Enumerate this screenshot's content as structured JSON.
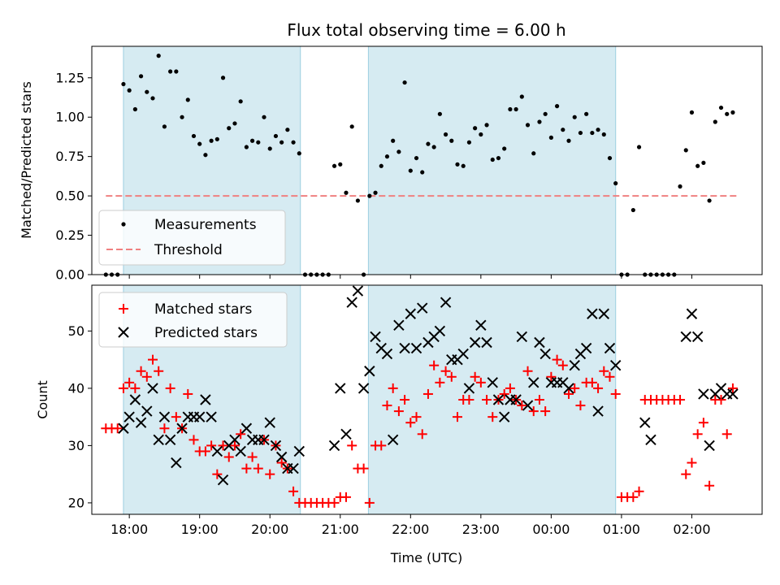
{
  "chart_data": [
    {
      "type": "scatter",
      "title": "Flux total observing time = 6.00 h",
      "xlabel": "",
      "ylabel": "Matched/Predicted stars",
      "ylim": [
        0,
        1.45
      ],
      "yticks": [
        0.0,
        0.25,
        0.5,
        0.75,
        1.0,
        1.25
      ],
      "ytick_labels": [
        "0.00",
        "0.25",
        "0.50",
        "0.75",
        "1.00",
        "1.25"
      ],
      "xlim": [
        "17:28",
        "03:00"
      ],
      "xticks": [
        "18:00",
        "19:00",
        "20:00",
        "21:00",
        "22:00",
        "23:00",
        "00:00",
        "01:00",
        "02:00"
      ],
      "xtick_labels": [
        "",
        "",
        "",
        "",
        "",
        "",
        "",
        "",
        ""
      ],
      "legend_position": "lower-left",
      "shaded_intervals": [
        [
          "17:55",
          "20:26"
        ],
        [
          "21:24",
          "00:55"
        ]
      ],
      "series": [
        {
          "name": "Measurements",
          "marker": "dot",
          "color": "#000000",
          "x": [
            "17:40",
            "17:45",
            "17:50",
            "17:55",
            "18:00",
            "18:05",
            "18:10",
            "18:15",
            "18:20",
            "18:25",
            "18:30",
            "18:35",
            "18:40",
            "18:45",
            "18:50",
            "18:55",
            "19:00",
            "19:05",
            "19:10",
            "19:15",
            "19:20",
            "19:25",
            "19:30",
            "19:35",
            "19:40",
            "19:45",
            "19:50",
            "19:55",
            "20:00",
            "20:05",
            "20:10",
            "20:15",
            "20:20",
            "20:25",
            "20:30",
            "20:35",
            "20:40",
            "20:45",
            "20:50",
            "20:55",
            "21:00",
            "21:05",
            "21:10",
            "21:15",
            "21:20",
            "21:25",
            "21:30",
            "21:35",
            "21:40",
            "21:45",
            "21:50",
            "21:55",
            "22:00",
            "22:05",
            "22:10",
            "22:15",
            "22:20",
            "22:25",
            "22:30",
            "22:35",
            "22:40",
            "22:45",
            "22:50",
            "22:55",
            "23:00",
            "23:05",
            "23:10",
            "23:15",
            "23:20",
            "23:25",
            "23:30",
            "23:35",
            "23:40",
            "23:45",
            "23:50",
            "23:55",
            "00:00",
            "00:05",
            "00:10",
            "00:15",
            "00:20",
            "00:25",
            "00:30",
            "00:35",
            "00:40",
            "00:45",
            "00:50",
            "00:55",
            "01:00",
            "01:05",
            "01:10",
            "01:15",
            "01:20",
            "01:25",
            "01:30",
            "01:35",
            "01:40",
            "01:45",
            "01:50",
            "01:55",
            "02:00",
            "02:05",
            "02:10",
            "02:15",
            "02:20",
            "02:25",
            "02:30",
            "02:35"
          ],
          "y": [
            0.0,
            0.0,
            0.0,
            1.21,
            1.17,
            1.05,
            1.26,
            1.16,
            1.12,
            1.39,
            0.94,
            1.29,
            1.29,
            1.0,
            1.11,
            0.88,
            0.83,
            0.76,
            0.85,
            0.86,
            1.25,
            0.93,
            0.96,
            1.1,
            0.81,
            0.85,
            0.84,
            1.0,
            0.8,
            0.88,
            0.84,
            0.92,
            0.84,
            0.77,
            0.0,
            0.0,
            0.0,
            0.0,
            0.0,
            0.69,
            0.7,
            0.52,
            0.94,
            0.47,
            0.0,
            0.5,
            0.52,
            0.69,
            0.75,
            0.85,
            0.78,
            1.22,
            0.66,
            0.74,
            0.65,
            0.83,
            0.81,
            1.02,
            0.89,
            0.85,
            0.7,
            0.69,
            0.84,
            0.93,
            0.89,
            0.95,
            0.73,
            0.74,
            0.8,
            1.05,
            1.05,
            1.13,
            0.95,
            0.77,
            0.97,
            1.02,
            0.87,
            1.07,
            0.92,
            0.85,
            1.0,
            0.9,
            1.02,
            0.9,
            0.92,
            0.89,
            0.74,
            0.58,
            0.0,
            0.0,
            0.41,
            0.81,
            0.0,
            0.0,
            0.0,
            0.0,
            0.0,
            0.0,
            0.56,
            0.79,
            1.03,
            0.69,
            0.71,
            0.47,
            0.97,
            1.06,
            1.02,
            1.03
          ]
        },
        {
          "name": "Threshold",
          "marker": "dashed-line",
          "color": "#f08080",
          "x": [
            "17:40",
            "02:40"
          ],
          "y": [
            0.5,
            0.5
          ]
        }
      ]
    },
    {
      "type": "scatter",
      "title": "",
      "xlabel": "Time (UTC)",
      "ylabel": "Count",
      "ylim": [
        18,
        58
      ],
      "yticks": [
        20,
        30,
        40,
        50
      ],
      "ytick_labels": [
        "20",
        "30",
        "40",
        "50"
      ],
      "xlim": [
        "17:28",
        "03:00"
      ],
      "xticks": [
        "18:00",
        "19:00",
        "20:00",
        "21:00",
        "22:00",
        "23:00",
        "00:00",
        "01:00",
        "02:00"
      ],
      "xtick_labels": [
        "18:00",
        "19:00",
        "20:00",
        "21:00",
        "22:00",
        "23:00",
        "00:00",
        "01:00",
        "02:00"
      ],
      "legend_position": "upper-left",
      "shaded_intervals": [
        [
          "17:55",
          "20:26"
        ],
        [
          "21:24",
          "00:55"
        ]
      ],
      "series": [
        {
          "name": "Matched stars",
          "marker": "plus",
          "color": "#ff0000",
          "x": [
            "17:40",
            "17:45",
            "17:50",
            "17:55",
            "18:00",
            "18:05",
            "18:10",
            "18:15",
            "18:20",
            "18:25",
            "18:30",
            "18:35",
            "18:40",
            "18:45",
            "18:50",
            "18:55",
            "19:00",
            "19:05",
            "19:10",
            "19:15",
            "19:20",
            "19:25",
            "19:30",
            "19:35",
            "19:40",
            "19:45",
            "19:50",
            "19:55",
            "20:00",
            "20:05",
            "20:10",
            "20:15",
            "20:20",
            "20:25",
            "20:30",
            "20:35",
            "20:40",
            "20:45",
            "20:50",
            "20:55",
            "21:00",
            "21:05",
            "21:10",
            "21:15",
            "21:20",
            "21:25",
            "21:30",
            "21:35",
            "21:40",
            "21:45",
            "21:50",
            "21:55",
            "22:00",
            "22:05",
            "22:10",
            "22:15",
            "22:20",
            "22:25",
            "22:30",
            "22:35",
            "22:40",
            "22:45",
            "22:50",
            "22:55",
            "23:00",
            "23:05",
            "23:10",
            "23:15",
            "23:20",
            "23:25",
            "23:30",
            "23:35",
            "23:40",
            "23:45",
            "23:50",
            "23:55",
            "00:00",
            "00:05",
            "00:10",
            "00:15",
            "00:20",
            "00:25",
            "00:30",
            "00:35",
            "00:40",
            "00:45",
            "00:50",
            "00:55",
            "01:00",
            "01:05",
            "01:10",
            "01:15",
            "01:20",
            "01:25",
            "01:30",
            "01:35",
            "01:40",
            "01:45",
            "01:50",
            "01:55",
            "02:00",
            "02:05",
            "02:10",
            "02:15",
            "02:20",
            "02:25",
            "02:30",
            "02:35"
          ],
          "y": [
            33,
            33,
            33,
            40,
            41,
            40,
            43,
            42,
            45,
            43,
            33,
            40,
            35,
            33,
            39,
            31,
            29,
            29,
            30,
            25,
            30,
            28,
            30,
            32,
            26,
            28,
            26,
            31,
            25,
            30,
            27,
            26,
            22,
            20,
            20,
            20,
            20,
            20,
            20,
            20,
            21,
            21,
            30,
            26,
            26,
            20,
            30,
            30,
            37,
            40,
            36,
            38,
            34,
            35,
            32,
            39,
            44,
            41,
            43,
            42,
            35,
            38,
            38,
            42,
            41,
            38,
            35,
            38,
            39,
            40,
            38,
            37,
            43,
            36,
            38,
            36,
            42,
            45,
            44,
            39,
            40,
            37,
            41,
            41,
            40,
            43,
            42,
            39,
            21,
            21,
            21,
            22,
            38,
            38,
            38,
            38,
            38,
            38,
            38,
            25,
            27,
            32,
            34,
            23,
            38,
            38,
            32,
            40
          ]
        },
        {
          "name": "Predicted stars",
          "marker": "x",
          "color": "#000000",
          "x": [
            "17:55",
            "18:00",
            "18:05",
            "18:10",
            "18:15",
            "18:20",
            "18:25",
            "18:30",
            "18:35",
            "18:40",
            "18:45",
            "18:50",
            "18:55",
            "19:00",
            "19:05",
            "19:10",
            "19:15",
            "19:20",
            "19:25",
            "19:30",
            "19:35",
            "19:40",
            "19:45",
            "19:50",
            "19:55",
            "20:00",
            "20:05",
            "20:10",
            "20:15",
            "20:20",
            "20:25",
            "20:55",
            "21:00",
            "21:05",
            "21:10",
            "21:15",
            "21:20",
            "21:25",
            "21:30",
            "21:35",
            "21:40",
            "21:45",
            "21:50",
            "21:55",
            "22:00",
            "22:05",
            "22:10",
            "22:15",
            "22:20",
            "22:25",
            "22:30",
            "22:35",
            "22:40",
            "22:45",
            "22:50",
            "22:55",
            "23:00",
            "23:05",
            "23:10",
            "23:15",
            "23:20",
            "23:25",
            "23:30",
            "23:35",
            "23:40",
            "23:45",
            "23:50",
            "23:55",
            "00:00",
            "00:05",
            "00:10",
            "00:15",
            "00:20",
            "00:25",
            "00:30",
            "00:35",
            "00:40",
            "00:45",
            "00:50",
            "00:55",
            "01:20",
            "01:25",
            "01:55",
            "02:00",
            "02:05",
            "02:10",
            "02:15",
            "02:20",
            "02:25",
            "02:30",
            "02:35"
          ],
          "y": [
            33,
            35,
            38,
            34,
            36,
            40,
            31,
            35,
            31,
            27,
            33,
            35,
            35,
            35,
            38,
            35,
            29,
            24,
            30,
            31,
            29,
            33,
            31,
            31,
            31,
            34,
            30,
            28,
            26,
            26,
            29,
            30,
            40,
            32,
            55,
            57,
            40,
            43,
            49,
            47,
            46,
            31,
            51,
            47,
            53,
            47,
            54,
            48,
            49,
            50,
            55,
            45,
            45,
            46,
            40,
            48,
            51,
            48,
            41,
            38,
            35,
            38,
            38,
            49,
            37,
            41,
            48,
            46,
            41,
            41,
            41,
            40,
            44,
            46,
            47,
            53,
            36,
            53,
            47,
            44,
            34,
            31,
            49,
            53,
            49,
            39,
            30,
            39,
            40,
            39,
            39
          ]
        }
      ]
    }
  ]
}
